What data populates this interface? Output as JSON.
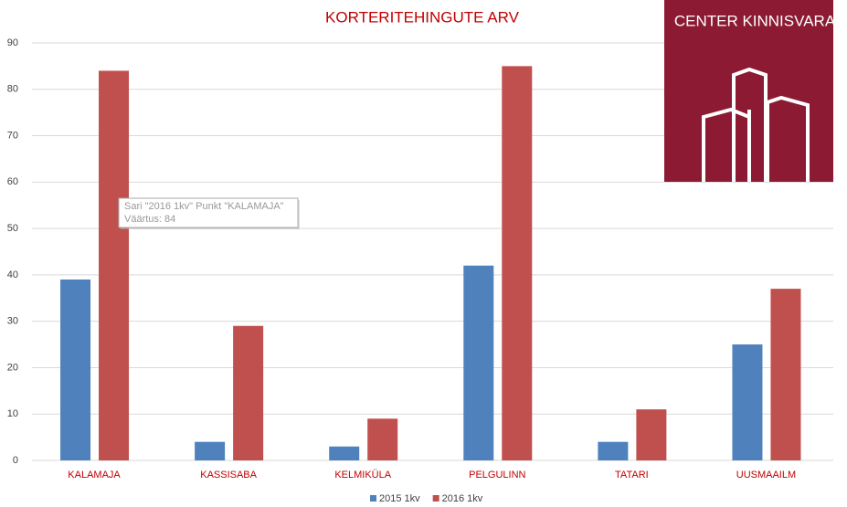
{
  "chart_data": {
    "type": "bar",
    "title": "KORTERITEHINGUTE ARV",
    "categories": [
      "KALAMAJA",
      "KASSISABA",
      "KELMIKÜLA",
      "PELGULINN",
      "TATARI",
      "UUSMAAILM"
    ],
    "series": [
      {
        "name": "2015 1kv",
        "color": "#4f81bd",
        "values": [
          39,
          4,
          3,
          42,
          4,
          25
        ]
      },
      {
        "name": "2016 1kv",
        "color": "#c0504d",
        "values": [
          84,
          29,
          9,
          85,
          11,
          37
        ]
      }
    ],
    "ylim": [
      0,
      90
    ],
    "yticks": [
      0,
      10,
      20,
      30,
      40,
      50,
      60,
      70,
      80,
      90
    ],
    "grid": true,
    "legend": "bottom"
  },
  "logo": {
    "text": "CENTER KINNISVARA"
  },
  "tooltip": {
    "lines": [
      "Sari \"2016 1kv\" Punkt \"KALAMAJA\"",
      "Väärtus: 84"
    ]
  }
}
